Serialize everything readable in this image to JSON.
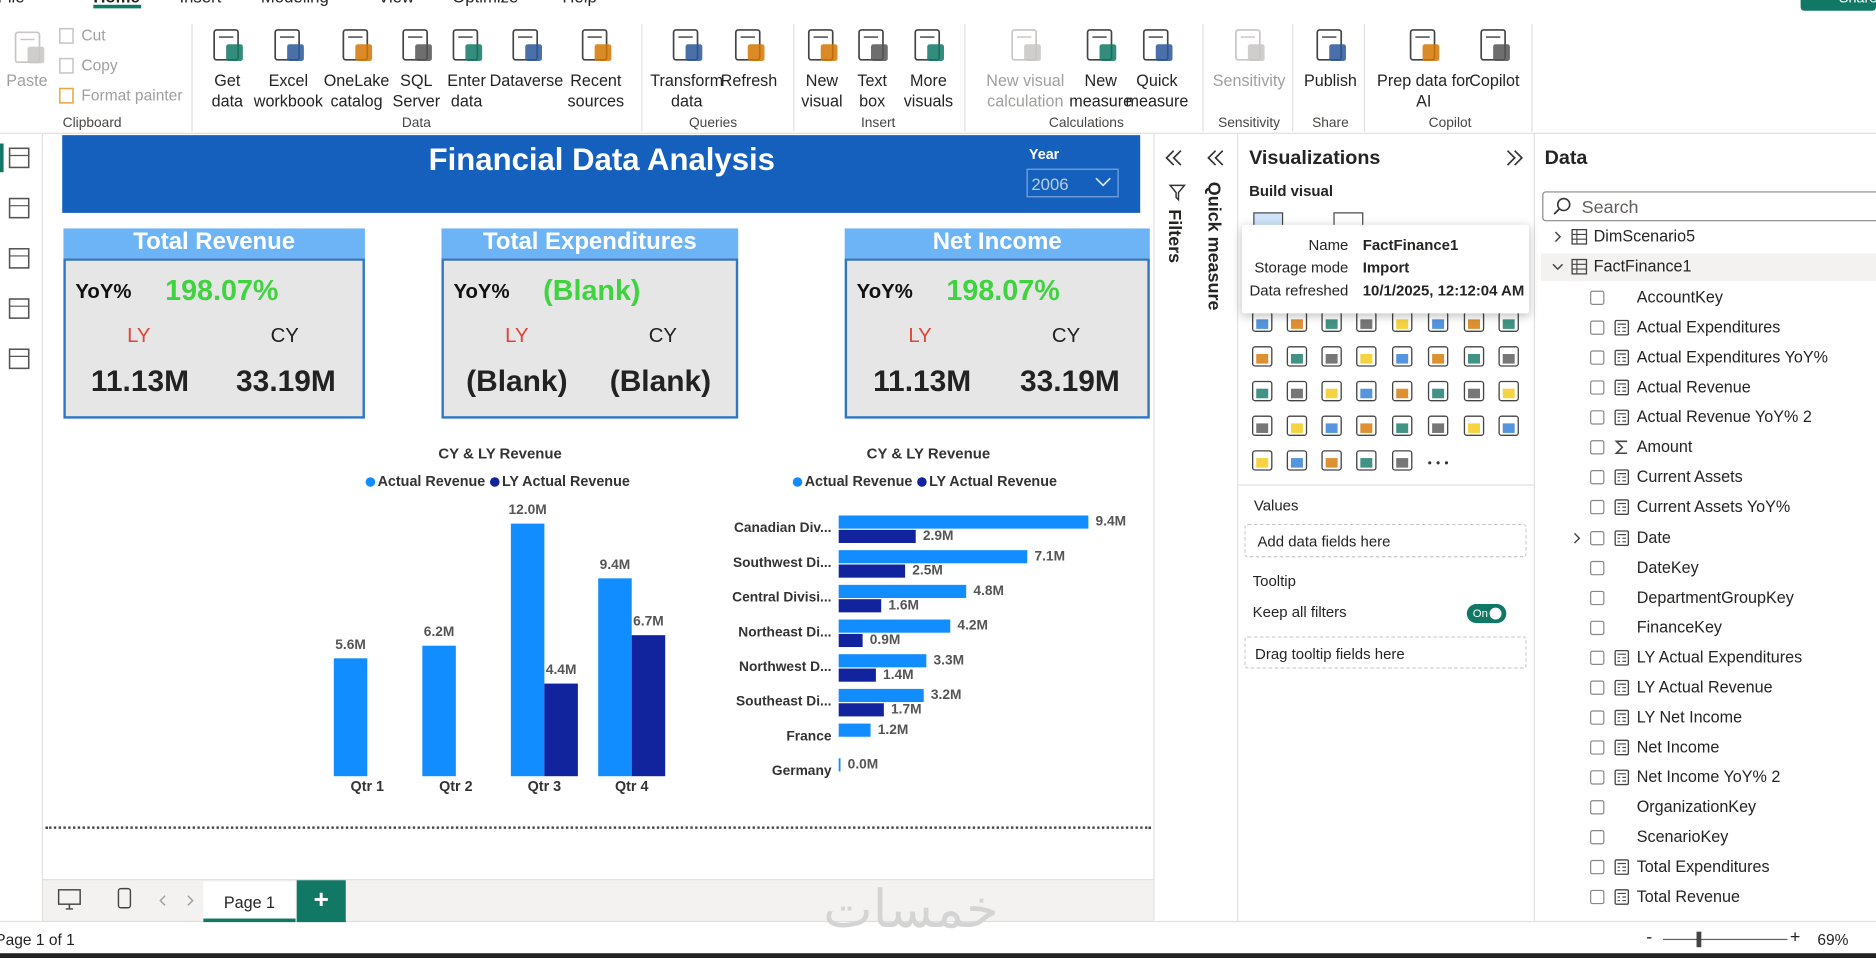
{
  "ribbon": {
    "tabs": [
      "File",
      "Home",
      "Insert",
      "Modeling",
      "View",
      "Optimize",
      "Help"
    ],
    "share": "Share",
    "groups": [
      {
        "label": "Clipboard",
        "items": [
          "Paste",
          "Cut",
          "Copy",
          "Format painter"
        ]
      },
      {
        "label": "Data",
        "items": [
          "Get data",
          "Excel workbook",
          "OneLake catalog",
          "SQL Server",
          "Enter data",
          "Dataverse",
          "Recent sources"
        ]
      },
      {
        "label": "Queries",
        "items": [
          "Transform data",
          "Refresh"
        ]
      },
      {
        "label": "Insert",
        "items": [
          "New visual",
          "Text box",
          "More visuals"
        ]
      },
      {
        "label": "Calculations",
        "items": [
          "New visual calculation",
          "New measure",
          "Quick measure"
        ]
      },
      {
        "label": "Sensitivity",
        "items": [
          "Sensitivity"
        ]
      },
      {
        "label": "Share",
        "items": [
          "Publish"
        ]
      },
      {
        "label": "Copilot",
        "items": [
          "Prep data for AI",
          "Copilot"
        ]
      }
    ]
  },
  "report": {
    "title": "Financial Data Analysis",
    "slicer": {
      "label": "Year",
      "value": "2006"
    },
    "cards": [
      {
        "title": "Total Revenue",
        "yoy_label": "YoY%",
        "yoy": "198.07%",
        "ly_label": "LY",
        "cy_label": "CY",
        "ly": "11.13M",
        "cy": "33.19M"
      },
      {
        "title": "Total Expenditures",
        "yoy_label": "YoY%",
        "yoy": "(Blank)",
        "ly_label": "LY",
        "cy_label": "CY",
        "ly": "(Blank)",
        "cy": "(Blank)"
      },
      {
        "title": "Net Income",
        "yoy_label": "YoY%",
        "yoy": "198.07%",
        "ly_label": "LY",
        "cy_label": "CY",
        "ly": "11.13M",
        "cy": "33.19M"
      }
    ],
    "charts": [
      {
        "type": "column",
        "title": "CY & LY Revenue",
        "categories": [
          "Qtr 1",
          "Qtr 2",
          "Qtr 3",
          "Qtr 4"
        ],
        "series": [
          {
            "name": "Actual Revenue",
            "color": "#118dff",
            "values": [
              5.6,
              6.2,
              12.0,
              9.4
            ],
            "value_labels": [
              "5.6M",
              "6.2M",
              "12.0M",
              "9.4M"
            ]
          },
          {
            "name": "LY Actual Revenue",
            "color": "#12239e",
            "values": [
              null,
              null,
              4.4,
              6.7
            ],
            "value_labels": [
              null,
              null,
              "4.4M",
              "6.7M"
            ]
          }
        ]
      },
      {
        "type": "bar",
        "title": "CY & LY Revenue",
        "categories": [
          "Canadian Div...",
          "Southwest Di...",
          "Central Divisi...",
          "Northeast Di...",
          "Northwest D...",
          "Southeast Di...",
          "France",
          "Germany"
        ],
        "series": [
          {
            "name": "Actual Revenue",
            "color": "#118dff",
            "values": [
              9.4,
              7.1,
              4.8,
              4.2,
              3.3,
              3.2,
              1.2,
              0.0
            ],
            "value_labels": [
              "9.4M",
              "7.1M",
              "4.8M",
              "4.2M",
              "3.3M",
              "3.2M",
              "1.2M",
              "0.0M"
            ]
          },
          {
            "name": "LY Actual Revenue",
            "color": "#12239e",
            "values": [
              2.9,
              2.5,
              1.6,
              0.9,
              1.4,
              1.7,
              null,
              null
            ],
            "value_labels": [
              "2.9M",
              "2.5M",
              "1.6M",
              "0.9M",
              "1.4M",
              "1.7M",
              null,
              null
            ]
          }
        ]
      }
    ]
  },
  "filters_pane": {
    "label": "Filters"
  },
  "quick_measure": {
    "label": "Quick measure"
  },
  "visualizations": {
    "title": "Visualizations",
    "build_visual": "Build visual",
    "tooltip": {
      "rows": [
        [
          "Name",
          "FactFinance1"
        ],
        [
          "Storage mode",
          "Import"
        ],
        [
          "Data refreshed",
          "10/1/2025, 12:12:04 AM"
        ]
      ]
    },
    "values_label": "Values",
    "values_placeholder": "Add data fields here",
    "tooltip_label": "Tooltip",
    "keep_all_filters": "Keep all filters",
    "toggle": "On",
    "tooltip_placeholder": "Drag tooltip fields here"
  },
  "data_pane": {
    "title": "Data",
    "search_placeholder": "Search",
    "tables": [
      "DimScenario5",
      "FactFinance1"
    ],
    "fields": [
      "AccountKey",
      "Actual Expenditures",
      "Actual Expenditures YoY%",
      "Actual Revenue",
      "Actual Revenue YoY% 2",
      "Amount",
      "Current Assets",
      "Current Assets YoY%",
      "Date",
      "DateKey",
      "DepartmentGroupKey",
      "FinanceKey",
      "LY Actual Expenditures",
      "LY Actual Revenue",
      "LY Net Income",
      "Net Income",
      "Net Income YoY% 2",
      "OrganizationKey",
      "ScenarioKey",
      "Total Expenditures",
      "Total Revenue"
    ]
  },
  "page_tabs": {
    "pages": [
      "Page 1"
    ],
    "add": "+"
  },
  "status_bar": {
    "page_info": "Page 1 of 1",
    "zoom_out": "-",
    "zoom_in": "+",
    "zoom": "69%"
  },
  "watermark": "خمسات"
}
